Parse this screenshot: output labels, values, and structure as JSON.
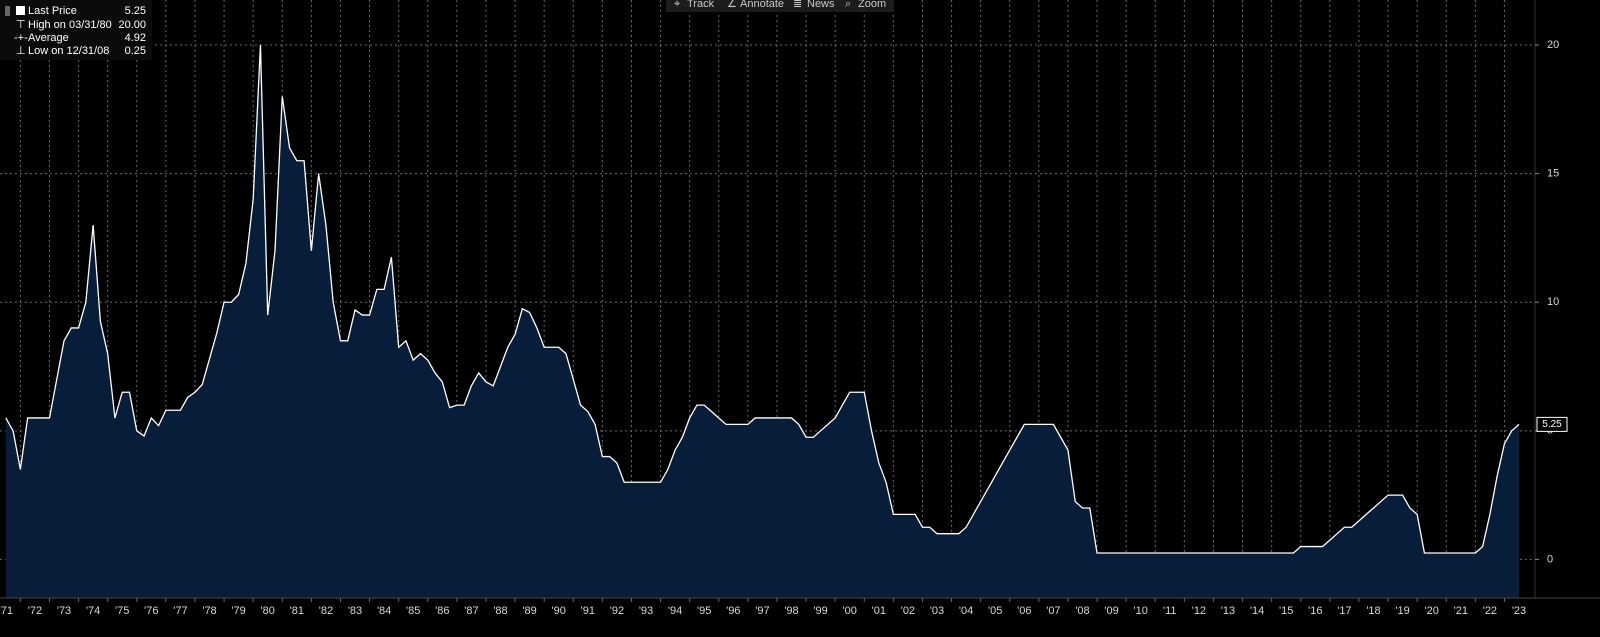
{
  "toolbar": [
    "Track",
    "Annotate",
    "News",
    "Zoom"
  ],
  "legend": [
    {
      "label": "Last Price",
      "value": 5.25
    },
    {
      "label": "High on 03/31/80",
      "value": {
        "value": 20,
        "label": "20.00"
      }
    },
    {
      "label": "Average",
      "value": 4.92
    },
    {
      "label": "Low on 12/31/08",
      "value": 0.25
    }
  ],
  "chart_data": {
    "type": "area",
    "series": [
      {
        "name": "Last Price",
        "color": "#ffffff",
        "fill": "#071d3a",
        "x": [
          1971.5,
          1971.75,
          1972,
          1972.25,
          1972.5,
          1972.75,
          1973,
          1973.25,
          1973.5,
          1973.75,
          1974,
          1974.25,
          1974.5,
          1974.75,
          1975,
          1975.25,
          1975.5,
          1975.75,
          1976,
          1976.25,
          1976.5,
          1976.75,
          1977,
          1977.25,
          1977.5,
          1977.75,
          1978,
          1978.25,
          1978.5,
          1978.75,
          1979,
          1979.25,
          1979.5,
          1979.75,
          1980,
          1980.25,
          1980.5,
          1980.75,
          1981,
          1981.25,
          1981.5,
          1981.75,
          1982,
          1982.25,
          1982.5,
          1982.75,
          1983,
          1983.25,
          1983.5,
          1983.75,
          1984,
          1984.25,
          1984.5,
          1984.75,
          1985,
          1985.25,
          1985.5,
          1985.75,
          1986,
          1986.25,
          1986.5,
          1986.75,
          1987,
          1987.25,
          1987.5,
          1987.75,
          1988,
          1988.25,
          1988.5,
          1988.75,
          1989,
          1989.25,
          1989.5,
          1989.75,
          1990,
          1990.25,
          1990.5,
          1990.75,
          1991,
          1991.25,
          1991.5,
          1991.75,
          1992,
          1992.25,
          1992.5,
          1992.75,
          1993,
          1993.25,
          1993.5,
          1993.75,
          1994,
          1994.25,
          1994.5,
          1994.75,
          1995,
          1995.25,
          1995.5,
          1995.75,
          1996,
          1996.25,
          1996.5,
          1996.75,
          1997,
          1997.25,
          1997.5,
          1997.75,
          1998,
          1998.25,
          1998.5,
          1998.75,
          1999,
          1999.25,
          1999.5,
          1999.75,
          2000,
          2000.25,
          2000.5,
          2000.75,
          2001,
          2001.25,
          2001.5,
          2001.75,
          2002,
          2002.25,
          2002.5,
          2002.75,
          2003,
          2003.25,
          2003.5,
          2003.75,
          2004,
          2004.25,
          2004.5,
          2004.75,
          2005,
          2005.25,
          2005.5,
          2005.75,
          2006,
          2006.25,
          2006.5,
          2006.75,
          2007,
          2007.25,
          2007.5,
          2007.75,
          2008,
          2008.25,
          2008.5,
          2008.75,
          2009,
          2009.25,
          2009.5,
          2009.75,
          2010,
          2010.25,
          2010.5,
          2010.75,
          2011,
          2011.25,
          2011.5,
          2011.75,
          2012,
          2012.25,
          2012.5,
          2012.75,
          2013,
          2013.25,
          2013.5,
          2013.75,
          2014,
          2014.25,
          2014.5,
          2014.75,
          2015,
          2015.25,
          2015.5,
          2015.75,
          2016,
          2016.25,
          2016.5,
          2016.75,
          2017,
          2017.25,
          2017.5,
          2017.75,
          2018,
          2018.25,
          2018.5,
          2018.75,
          2019,
          2019.25,
          2019.5,
          2019.75,
          2020,
          2020.25,
          2020.5,
          2020.75,
          2021,
          2021.25,
          2021.5,
          2021.75,
          2022,
          2022.25,
          2022.5,
          2022.75,
          2023,
          2023.25,
          2023.5
        ],
        "values": [
          5.5,
          5,
          3.5,
          5.5,
          5.5,
          5.5,
          5.5,
          7,
          8.5,
          9,
          9,
          10,
          13,
          9.25,
          8,
          5.5,
          6.5,
          6.5,
          5,
          4.8,
          5.5,
          5.2,
          5.8,
          5.8,
          5.8,
          6.3,
          6.5,
          6.8,
          7.8,
          8.8,
          10,
          10,
          10.3,
          11.5,
          14,
          20,
          9.5,
          12,
          18,
          16,
          15.5,
          15.5,
          12,
          15,
          13,
          10,
          8.5,
          8.5,
          9.7,
          9.5,
          9.5,
          10.5,
          10.5,
          11.75,
          8.25,
          8.5,
          7.75,
          8,
          7.75,
          7.25,
          6.9,
          5.9,
          6,
          6,
          6.75,
          7.25,
          6.9,
          6.75,
          7.5,
          8.25,
          8.75,
          9.75,
          9.6,
          9,
          8.25,
          8.25,
          8.25,
          8,
          7,
          6,
          5.75,
          5.25,
          4,
          4,
          3.75,
          3,
          3,
          3,
          3,
          3,
          3,
          3.5,
          4.25,
          4.75,
          5.5,
          6,
          6,
          5.75,
          5.5,
          5.25,
          5.25,
          5.25,
          5.25,
          5.5,
          5.5,
          5.5,
          5.5,
          5.5,
          5.5,
          5.25,
          4.75,
          4.75,
          5,
          5.25,
          5.5,
          6,
          6.5,
          6.5,
          6.5,
          5,
          3.75,
          3,
          1.75,
          1.75,
          1.75,
          1.75,
          1.25,
          1.25,
          1,
          1,
          1,
          1,
          1.25,
          1.75,
          2.25,
          2.75,
          3.25,
          3.75,
          4.25,
          4.75,
          5.25,
          5.25,
          5.25,
          5.25,
          5.25,
          4.75,
          4.25,
          2.25,
          2,
          2,
          0.25,
          0.25,
          0.25,
          0.25,
          0.25,
          0.25,
          0.25,
          0.25,
          0.25,
          0.25,
          0.25,
          0.25,
          0.25,
          0.25,
          0.25,
          0.25,
          0.25,
          0.25,
          0.25,
          0.25,
          0.25,
          0.25,
          0.25,
          0.25,
          0.25,
          0.25,
          0.25,
          0.25,
          0.5,
          0.5,
          0.5,
          0.5,
          0.75,
          1,
          1.25,
          1.25,
          1.5,
          1.75,
          2,
          2.25,
          2.5,
          2.5,
          2.5,
          2,
          1.75,
          0.25,
          0.25,
          0.25,
          0.25,
          0.25,
          0.25,
          0.25,
          0.25,
          0.5,
          1.75,
          3.25,
          4.5,
          5,
          5.25
        ]
      }
    ],
    "xlim": [
      1971.3,
      2024.05
    ],
    "ylim": [
      -1.5,
      21.75
    ],
    "yticks": [
      0,
      5,
      10,
      15,
      20
    ],
    "xticks": [
      {
        "value": 1971,
        "label": "'71"
      },
      {
        "value": 1972,
        "label": "'72"
      },
      {
        "value": 1973,
        "label": "'73"
      },
      {
        "value": 1974,
        "label": "'74"
      },
      {
        "value": 1975,
        "label": "'75"
      },
      {
        "value": 1976,
        "label": "'76"
      },
      {
        "value": 1977,
        "label": "'77"
      },
      {
        "value": 1978,
        "label": "'78"
      },
      {
        "value": 1979,
        "label": "'79"
      },
      {
        "value": 1980,
        "label": "'80"
      },
      {
        "value": 1981,
        "label": "'81"
      },
      {
        "value": 1982,
        "label": "'82"
      },
      {
        "value": 1983,
        "label": "'83"
      },
      {
        "value": 1984,
        "label": "'84"
      },
      {
        "value": 1985,
        "label": "'85"
      },
      {
        "value": 1986,
        "label": "'86"
      },
      {
        "value": 1987,
        "label": "'87"
      },
      {
        "value": 1988,
        "label": "'88"
      },
      {
        "value": 1989,
        "label": "'89"
      },
      {
        "value": 1990,
        "label": "'90"
      },
      {
        "value": 1991,
        "label": "'91"
      },
      {
        "value": 1992,
        "label": "'92"
      },
      {
        "value": 1993,
        "label": "'93"
      },
      {
        "value": 1994,
        "label": "'94"
      },
      {
        "value": 1995,
        "label": "'95"
      },
      {
        "value": 1996,
        "label": "'96"
      },
      {
        "value": 1997,
        "label": "'97"
      },
      {
        "value": 1998,
        "label": "'98"
      },
      {
        "value": 1999,
        "label": "'99"
      },
      {
        "value": 2000,
        "label": "'00"
      },
      {
        "value": 2001,
        "label": "'01"
      },
      {
        "value": 2002,
        "label": "'02"
      },
      {
        "value": 2003,
        "label": "'03"
      },
      {
        "value": 2004,
        "label": "'04"
      },
      {
        "value": 2005,
        "label": "'05"
      },
      {
        "value": 2006,
        "label": "'06"
      },
      {
        "value": 2007,
        "label": "'07"
      },
      {
        "value": 2008,
        "label": "'08"
      },
      {
        "value": 2009,
        "label": "'09"
      },
      {
        "value": 2010,
        "label": "'10"
      },
      {
        "value": 2011,
        "label": "'11"
      },
      {
        "value": 2012,
        "label": "'12"
      },
      {
        "value": 2013,
        "label": "'13"
      },
      {
        "value": 2014,
        "label": "'14"
      },
      {
        "value": 2015,
        "label": "'15"
      },
      {
        "value": 2016,
        "label": "'16"
      },
      {
        "value": 2017,
        "label": "'17"
      },
      {
        "value": 2018,
        "label": "'18"
      },
      {
        "value": 2019,
        "label": "'19"
      },
      {
        "value": 2020,
        "label": "'20"
      },
      {
        "value": 2021,
        "label": "'21"
      },
      {
        "value": 2022,
        "label": "'22"
      },
      {
        "value": 2023,
        "label": "'23"
      }
    ],
    "grid": true
  }
}
